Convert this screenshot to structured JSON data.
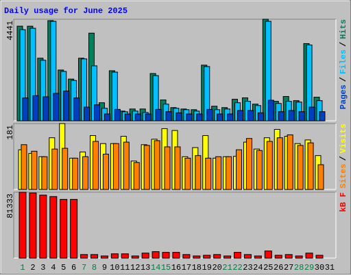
{
  "title": "Daily usage for June 2025",
  "legend_separator": "/",
  "weekend_color": "#008040",
  "weekends": [
    0,
    6,
    7,
    13,
    14,
    20,
    21,
    27,
    28
  ],
  "chart_data": [
    {
      "type": "bar",
      "ylim": [
        0,
        4441
      ],
      "yticks": [
        4441
      ],
      "series": [
        {
          "name": "Hits",
          "color": "#008060",
          "values": [
            4137,
            4137,
            2738,
            4380,
            2221,
            1825,
            2738,
            3833,
            791,
            2190,
            426,
            517,
            517,
            2068,
            913,
            578,
            517,
            487,
            2434,
            639,
            578,
            943,
            1004,
            730,
            4441,
            852,
            1065,
            882,
            3377,
            1034,
            0
          ]
        },
        {
          "name": "Files",
          "color": "#00c0ff",
          "values": [
            3985,
            4046,
            2647,
            4350,
            2160,
            1764,
            2707,
            2403,
            548,
            2129,
            395,
            426,
            365,
            1977,
            730,
            548,
            487,
            426,
            2373,
            487,
            517,
            791,
            852,
            669,
            4350,
            760,
            852,
            821,
            3316,
            882,
            0
          ]
        },
        {
          "name": "Pages",
          "color": "#0040c0",
          "values": [
            1000,
            1100,
            1050,
            1200,
            1300,
            1000,
            600,
            700,
            300,
            500,
            300,
            300,
            300,
            500,
            400,
            350,
            300,
            300,
            500,
            300,
            300,
            450,
            450,
            350,
            900,
            400,
            450,
            400,
            600,
            400,
            0
          ]
        }
      ]
    },
    {
      "type": "bar",
      "ylim": [
        0,
        181
      ],
      "yticks": [
        181
      ],
      "series": [
        {
          "name": "Visits",
          "color": "#ffff00",
          "values": [
            109,
            99,
            90,
            142,
            181,
            86,
            103,
            148,
            126,
            126,
            146,
            78,
            123,
            138,
            167,
            162,
            90,
            115,
            148,
            86,
            90,
            91,
            130,
            111,
            142,
            165,
            146,
            126,
            136,
            93,
            0
          ]
        },
        {
          "name": "Sites",
          "color": "#ff8000",
          "values": [
            123,
            105,
            90,
            111,
            113,
            86,
            90,
            132,
            97,
            126,
            130,
            74,
            121,
            134,
            117,
            117,
            86,
            93,
            86,
            90,
            90,
            109,
            140,
            107,
            132,
            142,
            150,
            121,
            128,
            68,
            0
          ]
        }
      ]
    },
    {
      "type": "bar",
      "ylim": [
        0,
        81333
      ],
      "yticks": [
        81333
      ],
      "categories": [
        "1",
        "2",
        "3",
        "4",
        "5",
        "6",
        "7",
        "8",
        "9",
        "10",
        "11",
        "12",
        "13",
        "14",
        "15",
        "16",
        "17",
        "18",
        "19",
        "20",
        "21",
        "22",
        "23",
        "24",
        "25",
        "26",
        "27",
        "28",
        "29",
        "30",
        "31"
      ],
      "series": [
        {
          "name": "kB F",
          "color": "#ff0000",
          "values": [
            81333,
            80400,
            77800,
            76000,
            72500,
            72500,
            4400,
            4400,
            2650,
            5300,
            5300,
            2650,
            6200,
            8000,
            7100,
            7100,
            4400,
            2650,
            3500,
            4400,
            2650,
            7100,
            4400,
            2650,
            8800,
            3500,
            4400,
            2650,
            6200,
            3500,
            0
          ]
        }
      ]
    }
  ]
}
